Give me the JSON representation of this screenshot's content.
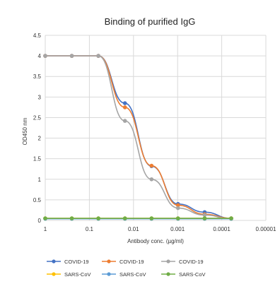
{
  "chart_data": {
    "type": "line",
    "title": "Binding of purified IgG",
    "xlabel": "Antibody conc. (µg/ml)",
    "ylabel": "OD450 nm",
    "x_scale": "log",
    "x_reversed": true,
    "xlim": [
      1,
      1e-05
    ],
    "ylim": [
      0,
      4.5
    ],
    "x_tick_labels": [
      "1",
      "0.1",
      "0.01",
      "0.001",
      "0.0001",
      "0.00001"
    ],
    "y_tick_labels": [
      "0",
      "0.5",
      "1",
      "1.5",
      "2",
      "2.5",
      "3",
      "3.5",
      "4",
      "4.5"
    ],
    "grid": true,
    "legend_position": "bottom",
    "series": [
      {
        "name": "COVID-19",
        "color": "#4472c4",
        "x": [
          1,
          0.25,
          0.0625,
          0.015625,
          0.0039,
          0.00098,
          0.000244,
          6.1e-05
        ],
        "y": [
          4.0,
          4.0,
          4.0,
          2.85,
          1.32,
          0.4,
          0.2,
          0.05
        ]
      },
      {
        "name": "COVID-19",
        "color": "#ed7d31",
        "x": [
          1,
          0.25,
          0.0625,
          0.015625,
          0.0039,
          0.00098,
          0.000244,
          6.1e-05
        ],
        "y": [
          4.0,
          4.0,
          4.0,
          2.75,
          1.33,
          0.37,
          0.15,
          0.05
        ]
      },
      {
        "name": "COVID-19",
        "color": "#a5a5a5",
        "x": [
          1,
          0.25,
          0.0625,
          0.015625,
          0.0039,
          0.00098,
          0.000244,
          6.1e-05
        ],
        "y": [
          4.0,
          4.0,
          4.0,
          2.42,
          1.0,
          0.3,
          0.13,
          0.04
        ]
      },
      {
        "name": "SARS-CoV",
        "color": "#ffc000",
        "x": [
          1,
          0.25,
          0.0625,
          0.015625,
          0.0039,
          0.00098,
          0.000244,
          6.1e-05
        ],
        "y": [
          0.05,
          0.05,
          0.05,
          0.05,
          0.05,
          0.05,
          0.05,
          0.05
        ]
      },
      {
        "name": "SARS-CoV",
        "color": "#5b9bd5",
        "x": [
          1,
          0.25,
          0.0625,
          0.015625,
          0.0039,
          0.00098,
          0.000244,
          6.1e-05
        ],
        "y": [
          0.04,
          0.04,
          0.04,
          0.04,
          0.04,
          0.04,
          0.04,
          0.04
        ]
      },
      {
        "name": "SARS-CoV",
        "color": "#70ad47",
        "x": [
          1,
          0.25,
          0.0625,
          0.015625,
          0.0039,
          0.00098,
          0.000244,
          6.1e-05
        ],
        "y": [
          0.05,
          0.05,
          0.05,
          0.05,
          0.05,
          0.05,
          0.05,
          0.05
        ]
      }
    ]
  }
}
